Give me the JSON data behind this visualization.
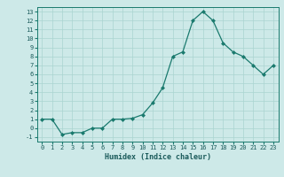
{
  "x": [
    0,
    1,
    2,
    3,
    4,
    5,
    6,
    7,
    8,
    9,
    10,
    11,
    12,
    13,
    14,
    15,
    16,
    17,
    18,
    19,
    20,
    21,
    22,
    23
  ],
  "y": [
    1,
    1,
    -0.7,
    -0.5,
    -0.5,
    0,
    0,
    1,
    1,
    1.1,
    1.5,
    2.8,
    4.5,
    8,
    8.5,
    12,
    13,
    12,
    9.5,
    8.5,
    8,
    7,
    6,
    7
  ],
  "xlabel": "Humidex (Indice chaleur)",
  "ylabel": "",
  "ylim": [
    -1.5,
    13.5
  ],
  "xlim": [
    -0.5,
    23.5
  ],
  "yticks": [
    -1,
    0,
    1,
    2,
    3,
    4,
    5,
    6,
    7,
    8,
    9,
    10,
    11,
    12,
    13
  ],
  "xticks": [
    0,
    1,
    2,
    3,
    4,
    5,
    6,
    7,
    8,
    9,
    10,
    11,
    12,
    13,
    14,
    15,
    16,
    17,
    18,
    19,
    20,
    21,
    22,
    23
  ],
  "line_color": "#1a7a6e",
  "marker": "D",
  "marker_size": 2.0,
  "bg_color": "#cde9e8",
  "grid_color": "#aad4d0",
  "font_color": "#1a5a5a",
  "tick_fontsize": 5.0,
  "xlabel_fontsize": 6.0
}
